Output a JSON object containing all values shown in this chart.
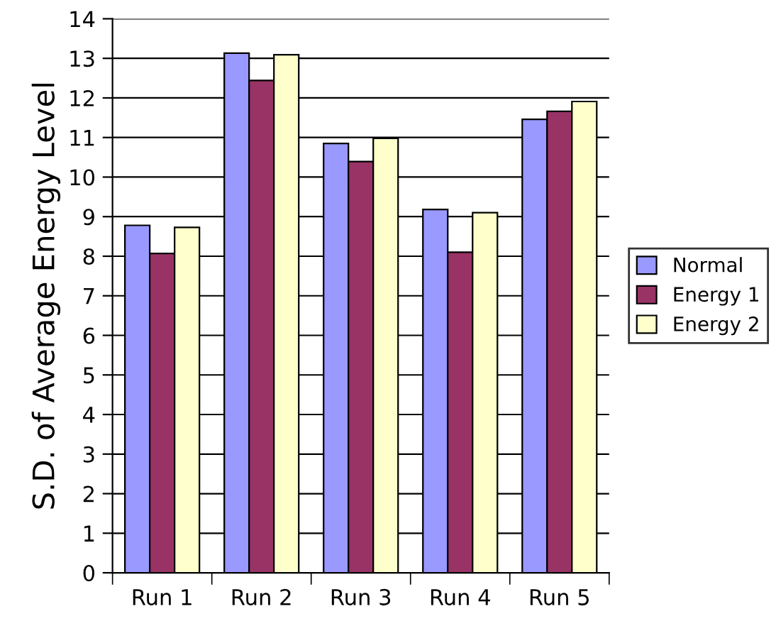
{
  "chart_data": {
    "type": "bar",
    "ylabel": "S.D. of Average Energy Level",
    "categories": [
      "Run 1",
      "Run 2",
      "Run 3",
      "Run 4",
      "Run 5"
    ],
    "series": [
      {
        "name": "Normal",
        "color": "#9999ff",
        "values": [
          8.78,
          13.13,
          10.85,
          9.18,
          11.46
        ]
      },
      {
        "name": "Energy 1",
        "color": "#993366",
        "values": [
          8.07,
          12.44,
          10.39,
          8.1,
          11.66
        ]
      },
      {
        "name": "Energy 2",
        "color": "#ffffcc",
        "values": [
          8.73,
          13.09,
          10.98,
          9.1,
          11.91
        ]
      }
    ],
    "ylim": [
      0,
      14
    ],
    "yticks": [
      0,
      1,
      2,
      3,
      4,
      5,
      6,
      7,
      8,
      9,
      10,
      11,
      12,
      13,
      14
    ],
    "grid": "y",
    "legend": "right"
  }
}
